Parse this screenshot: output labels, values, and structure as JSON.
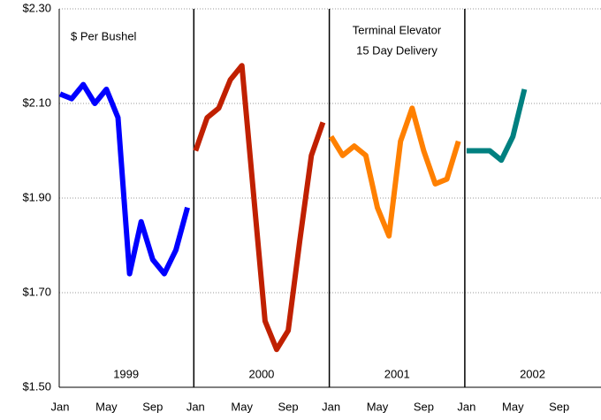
{
  "chart_data": {
    "type": "line",
    "annotations": [
      "$ Per Bushel",
      "Terminal Elevator",
      "15 Day Delivery"
    ],
    "x_labels": [
      "Jan",
      "May",
      "Sep",
      "Jan",
      "May",
      "Sep",
      "Jan",
      "May",
      "Sep",
      "Jan",
      "May",
      "Sep"
    ],
    "series": [
      {
        "name": "1999",
        "color": "#0000ff",
        "values": [
          2.12,
          2.11,
          2.14,
          2.1,
          2.13,
          2.07,
          1.74,
          1.85,
          1.77,
          1.74,
          1.79,
          1.88
        ]
      },
      {
        "name": "2000",
        "color": "#c02000",
        "values": [
          2.0,
          2.07,
          2.09,
          2.15,
          2.18,
          1.91,
          1.64,
          1.58,
          1.62,
          1.81,
          1.99,
          2.06
        ]
      },
      {
        "name": "2001",
        "color": "#ff8000",
        "values": [
          2.03,
          1.99,
          2.01,
          1.99,
          1.88,
          1.82,
          2.02,
          2.09,
          2.0,
          1.93,
          1.94,
          2.02
        ]
      },
      {
        "name": "2002",
        "color": "#008080",
        "values": [
          2.0,
          2.0,
          2.0,
          1.98,
          2.03,
          2.13
        ]
      }
    ],
    "ylim": [
      1.5,
      2.3
    ],
    "yticks": [
      {
        "value": 1.5,
        "label": "$1.50"
      },
      {
        "value": 1.7,
        "label": "$1.70"
      },
      {
        "value": 1.9,
        "label": "$1.90"
      },
      {
        "value": 2.1,
        "label": "$2.10"
      },
      {
        "value": 2.3,
        "label": "$2.30"
      }
    ],
    "grid": true
  }
}
